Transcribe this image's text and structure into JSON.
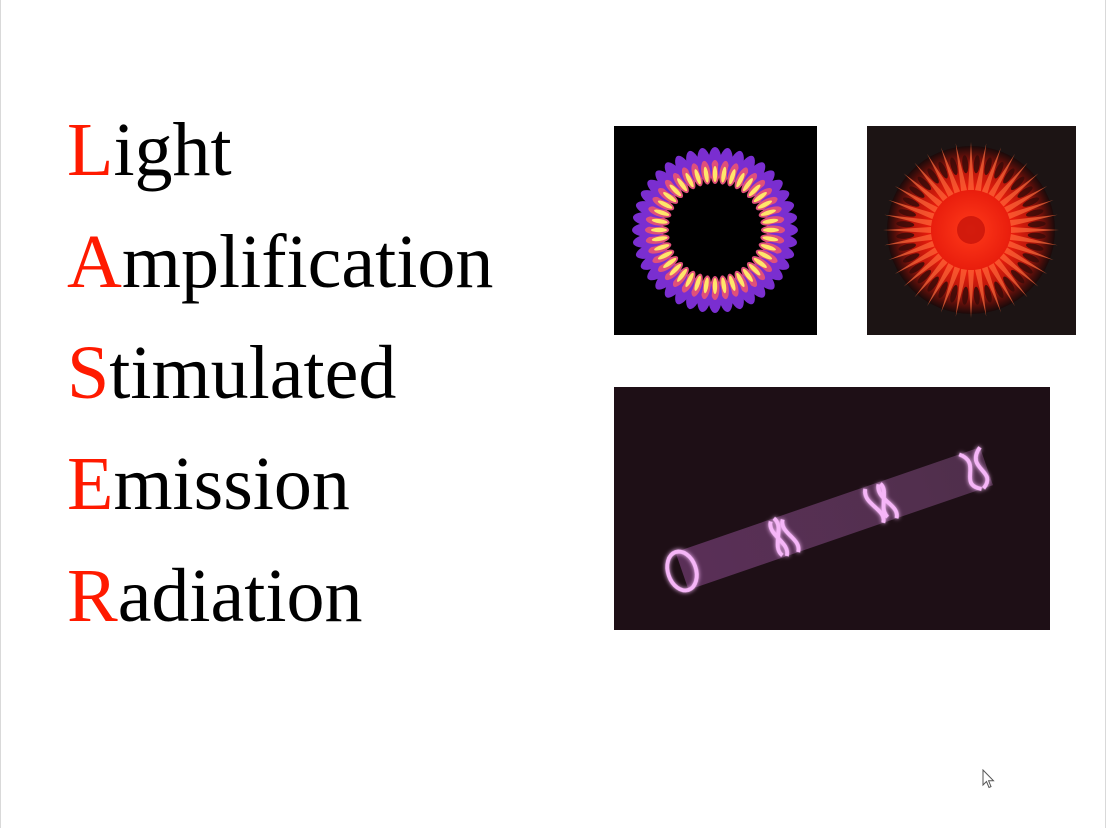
{
  "slide": {
    "lines": [
      {
        "initial": "L",
        "rest": "ight"
      },
      {
        "initial": "A",
        "rest": "mplification"
      },
      {
        "initial": "S",
        "rest": "timulated"
      },
      {
        "initial": "E",
        "rest": "mission"
      },
      {
        "initial": "R",
        "rest": "adiation"
      }
    ],
    "colors": {
      "initial": "#ff1a00",
      "text": "#000000",
      "background": "#ffffff"
    },
    "images": [
      {
        "name": "purple-ring-pattern"
      },
      {
        "name": "red-starburst-pattern"
      },
      {
        "name": "pink-knotted-laser-beam"
      }
    ]
  }
}
